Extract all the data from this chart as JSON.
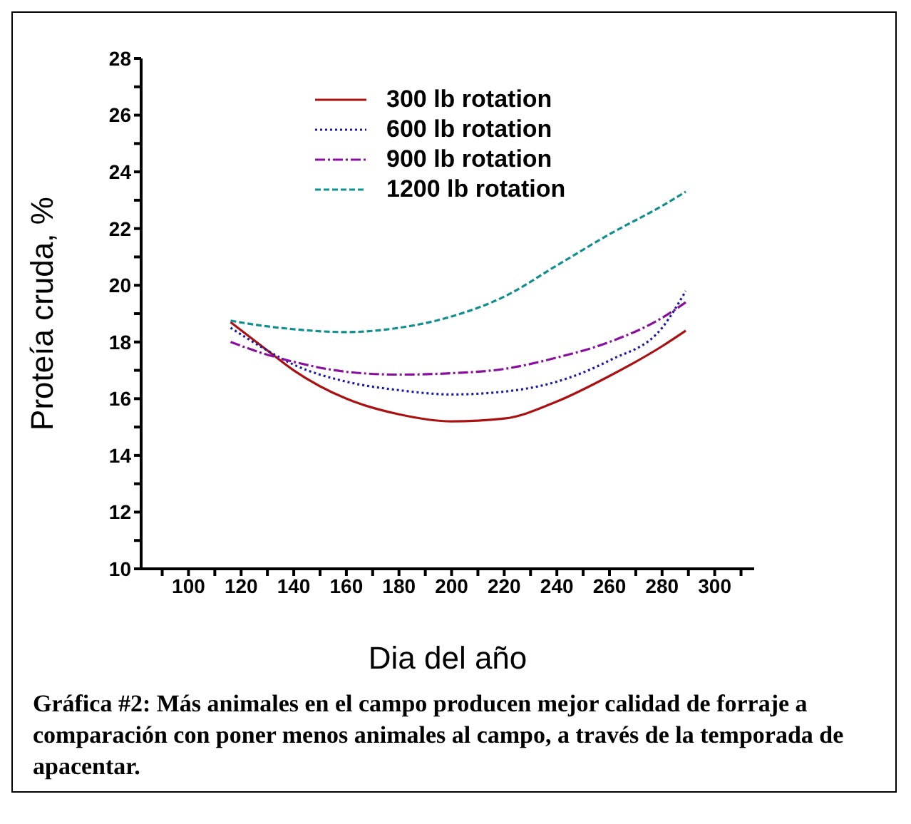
{
  "chart_data": {
    "type": "line",
    "xlabel": "Dia del año",
    "ylabel": "Proteía cruda, %",
    "annotations": [
      "Gráfica #2: Más animales en el campo producen mejor calidad de forraje a comparación con poner menos animales al campo, a través de la temporada de apacentar."
    ],
    "x": [
      116,
      130,
      140,
      160,
      180,
      200,
      220,
      240,
      260,
      280,
      289
    ],
    "series": [
      {
        "name": "300 lb rotation",
        "color": "#aa1111",
        "line_style": "solid",
        "values": [
          18.7,
          17.7,
          17.0,
          16.0,
          15.45,
          15.2,
          15.3,
          15.9,
          16.8,
          17.85,
          18.4
        ]
      },
      {
        "name": "600 lb rotation",
        "color": "#1a1aa8",
        "line_style": "dotted",
        "values": [
          18.5,
          17.7,
          17.2,
          16.6,
          16.3,
          16.15,
          16.25,
          16.6,
          17.35,
          18.5,
          19.8
        ]
      },
      {
        "name": "900 lb rotation",
        "color": "#8a0f9e",
        "line_style": "dashdot",
        "values": [
          18.0,
          17.55,
          17.3,
          16.95,
          16.85,
          16.9,
          17.05,
          17.45,
          18.0,
          18.85,
          19.4
        ]
      },
      {
        "name": "1200 lb rotation",
        "color": "#0f8f8f",
        "line_style": "dashed",
        "values": [
          18.75,
          18.55,
          18.45,
          18.35,
          18.5,
          18.9,
          19.6,
          20.7,
          21.8,
          22.8,
          23.3
        ]
      }
    ],
    "xlim": [
      82,
      315
    ],
    "xticks": [
      {
        "value": 90,
        "label": null
      },
      100,
      {
        "value": 110,
        "label": null
      },
      120,
      {
        "value": 130,
        "label": null
      },
      140,
      {
        "value": 150,
        "label": null
      },
      160,
      {
        "value": 170,
        "label": null
      },
      180,
      {
        "value": 190,
        "label": null
      },
      200,
      {
        "value": 210,
        "label": null
      },
      220,
      {
        "value": 230,
        "label": null
      },
      240,
      {
        "value": 250,
        "label": null
      },
      260,
      {
        "value": 270,
        "label": null
      },
      280,
      {
        "value": 290,
        "label": null
      },
      300,
      {
        "value": 310,
        "label": null
      }
    ],
    "ylim": [
      10,
      28
    ],
    "yticks": [
      10,
      {
        "value": 11,
        "label": null
      },
      12,
      {
        "value": 13,
        "label": null
      },
      14,
      {
        "value": 15,
        "label": null
      },
      16,
      {
        "value": 17,
        "label": null
      },
      18,
      {
        "value": 19,
        "label": null
      },
      20,
      {
        "value": 21,
        "label": null
      },
      22,
      {
        "value": 23,
        "label": null
      },
      24,
      {
        "value": 25,
        "label": null
      },
      26,
      {
        "value": 27,
        "label": null
      },
      28
    ],
    "grid": false,
    "legend": "top",
    "marker": "none"
  }
}
